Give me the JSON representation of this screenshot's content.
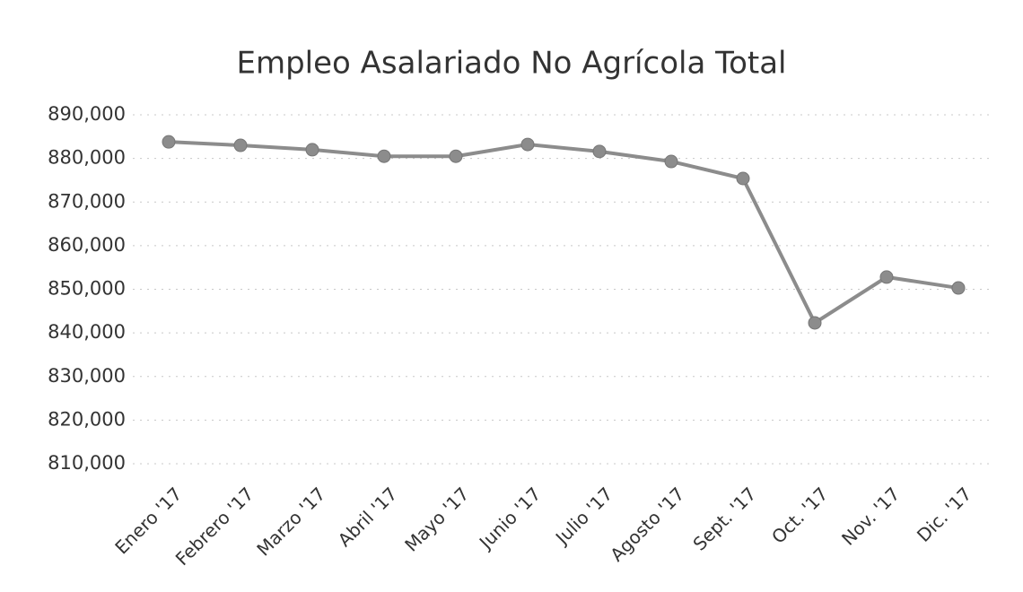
{
  "chart_data": {
    "type": "line",
    "title": "Empleo Asalariado No Agrícola Total",
    "categories": [
      "Enero '17",
      "Febrero '17",
      "Marzo '17",
      "Abril '17",
      "Mayo '17",
      "Junio '17",
      "Julio '17",
      "Agosto '17",
      "Sept. '17",
      "Oct. '17",
      "Nov. '17",
      "Dic. '17"
    ],
    "series": [
      {
        "name": "Empleo Asalariado No Agrícola Total",
        "color": "#8c8c8c",
        "values": [
          883800,
          883000,
          882000,
          880500,
          880500,
          883200,
          881600,
          879300,
          875400,
          842300,
          852800,
          850300
        ]
      }
    ],
    "ylim": [
      810000,
      890000
    ],
    "yticks": [
      {
        "value": 810000,
        "label": "810,000"
      },
      {
        "value": 820000,
        "label": "820,000"
      },
      {
        "value": 830000,
        "label": "830,000"
      },
      {
        "value": 840000,
        "label": "840,000"
      },
      {
        "value": 850000,
        "label": "850,000"
      },
      {
        "value": 860000,
        "label": "860,000"
      },
      {
        "value": 870000,
        "label": "870,000"
      },
      {
        "value": 880000,
        "label": "880,000"
      },
      {
        "value": 890000,
        "label": "890,000"
      }
    ],
    "grid": true
  }
}
